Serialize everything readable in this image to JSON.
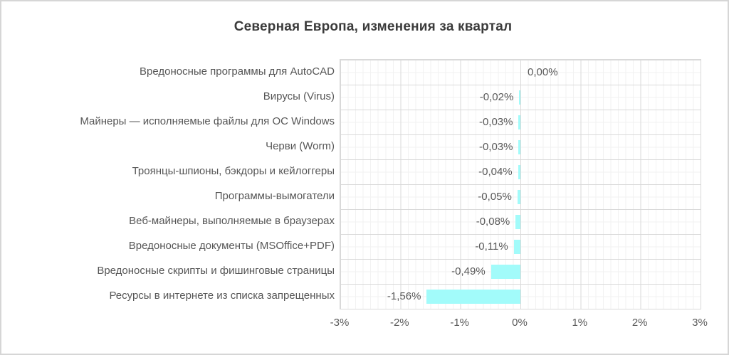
{
  "chart_data": {
    "type": "bar",
    "orientation": "horizontal",
    "title": "Северная Европа, изменения за квартал",
    "categories": [
      "Вредоносные программы для AutoCAD",
      "Вирусы (Virus)",
      "Майнеры — исполняемые файлы для ОС Windows",
      "Черви (Worm)",
      "Троянцы-шпионы, бэкдоры и кейлоггеры",
      "Программы-вымогатели",
      "Веб-майнеры, выполняемые в браузерах",
      "Вредоносные документы (MSOffice+PDF)",
      "Вредоносные скрипты и фишинговые страницы",
      "Ресурсы в интернете из списка запрещенных"
    ],
    "values": [
      0.0,
      -0.02,
      -0.03,
      -0.03,
      -0.04,
      -0.05,
      -0.08,
      -0.11,
      -0.49,
      -1.56
    ],
    "value_labels": [
      "0,00%",
      "-0,02%",
      "-0,03%",
      "-0,03%",
      "-0,04%",
      "-0,05%",
      "-0,08%",
      "-0,11%",
      "-0,49%",
      "-1,56%"
    ],
    "x_ticks": {
      "labels": [
        "-3%",
        "-2%",
        "-1%",
        "0%",
        "1%",
        "2%",
        "3%"
      ],
      "values": [
        -3,
        -2,
        -1,
        0,
        1,
        2,
        3
      ]
    },
    "xlim": [
      -3,
      3
    ],
    "xlabel": "",
    "ylabel": "",
    "grid": "major+minor",
    "legend": "none",
    "bar_color": "#a2fbfa",
    "gridline_major_color": "#d9d9d9",
    "gridline_minor_color": "#f2f2f2",
    "label_color": "#595959",
    "title_color": "#3b3b3b"
  }
}
